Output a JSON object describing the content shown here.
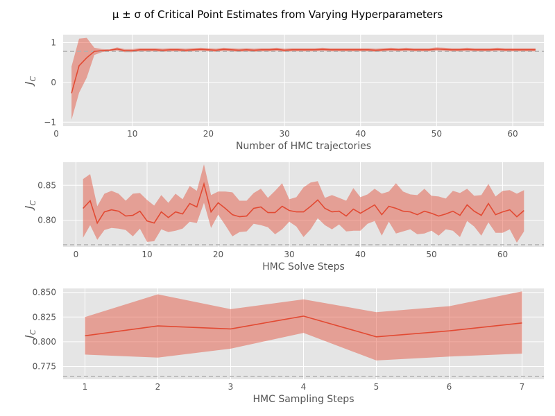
{
  "figure": {
    "title": "μ ± σ of Critical Point Estimates from Varying Hyperparameters"
  },
  "colors": {
    "panel_bg": "#e5e5e5",
    "grid": "#ffffff",
    "line": "#e24a33",
    "band": "#e24a33",
    "reference": "#b0b0b0",
    "tick_text": "#555555"
  },
  "chart_data": [
    {
      "type": "line",
      "xlabel": "Number of HMC trajectories",
      "ylabel": "J",
      "ylabel_sub": "C",
      "xlim": [
        0.9,
        64.1
      ],
      "ylim": [
        -1.1,
        1.2
      ],
      "xticks": [
        0,
        10,
        20,
        30,
        40,
        50,
        60
      ],
      "yticks": [
        -1,
        0,
        1
      ],
      "ytick_labels": [
        "−1",
        "0",
        "1"
      ],
      "reference_y": 0.78,
      "grid": true,
      "x": [
        2,
        3,
        4,
        5,
        6,
        7,
        8,
        9,
        10,
        11,
        12,
        13,
        14,
        15,
        16,
        17,
        18,
        19,
        20,
        21,
        22,
        23,
        24,
        25,
        26,
        27,
        28,
        29,
        30,
        31,
        32,
        33,
        34,
        35,
        36,
        37,
        38,
        39,
        40,
        41,
        42,
        43,
        44,
        45,
        46,
        47,
        48,
        49,
        50,
        51,
        52,
        53,
        54,
        55,
        56,
        57,
        58,
        59,
        60,
        61,
        62,
        63
      ],
      "mean": [
        -0.27,
        0.42,
        0.62,
        0.78,
        0.8,
        0.81,
        0.84,
        0.8,
        0.8,
        0.82,
        0.82,
        0.82,
        0.81,
        0.82,
        0.82,
        0.81,
        0.82,
        0.83,
        0.82,
        0.81,
        0.83,
        0.82,
        0.81,
        0.82,
        0.81,
        0.82,
        0.82,
        0.83,
        0.81,
        0.82,
        0.82,
        0.82,
        0.82,
        0.83,
        0.82,
        0.82,
        0.82,
        0.82,
        0.82,
        0.82,
        0.81,
        0.82,
        0.83,
        0.82,
        0.83,
        0.82,
        0.82,
        0.82,
        0.84,
        0.83,
        0.82,
        0.82,
        0.83,
        0.82,
        0.82,
        0.82,
        0.83,
        0.82,
        0.82,
        0.82,
        0.82,
        0.82
      ],
      "upper": [
        0.4,
        1.1,
        1.12,
        0.87,
        0.84,
        0.83,
        0.88,
        0.84,
        0.84,
        0.86,
        0.86,
        0.86,
        0.85,
        0.86,
        0.86,
        0.85,
        0.86,
        0.87,
        0.86,
        0.85,
        0.87,
        0.86,
        0.85,
        0.86,
        0.85,
        0.86,
        0.86,
        0.87,
        0.85,
        0.86,
        0.86,
        0.86,
        0.86,
        0.87,
        0.86,
        0.86,
        0.86,
        0.86,
        0.86,
        0.86,
        0.85,
        0.86,
        0.87,
        0.86,
        0.87,
        0.86,
        0.86,
        0.86,
        0.88,
        0.87,
        0.86,
        0.86,
        0.87,
        0.86,
        0.86,
        0.86,
        0.87,
        0.86,
        0.86,
        0.86,
        0.86,
        0.86
      ],
      "lower": [
        -0.94,
        -0.26,
        0.12,
        0.69,
        0.76,
        0.79,
        0.8,
        0.76,
        0.76,
        0.78,
        0.78,
        0.78,
        0.77,
        0.78,
        0.78,
        0.77,
        0.78,
        0.79,
        0.78,
        0.77,
        0.79,
        0.78,
        0.77,
        0.78,
        0.77,
        0.78,
        0.78,
        0.79,
        0.77,
        0.78,
        0.78,
        0.78,
        0.78,
        0.79,
        0.78,
        0.78,
        0.78,
        0.78,
        0.78,
        0.78,
        0.77,
        0.78,
        0.79,
        0.78,
        0.79,
        0.78,
        0.78,
        0.78,
        0.8,
        0.79,
        0.78,
        0.78,
        0.79,
        0.78,
        0.78,
        0.78,
        0.79,
        0.78,
        0.78,
        0.78,
        0.78,
        0.78
      ]
    },
    {
      "type": "line",
      "xlabel": "HMC Solve Steps",
      "ylabel": "J",
      "ylabel_sub": "C",
      "xlim": [
        -1.8,
        65.8
      ],
      "ylim": [
        0.762,
        0.883
      ],
      "xticks": [
        0,
        10,
        20,
        30,
        40,
        50,
        60
      ],
      "yticks": [
        0.8,
        0.85
      ],
      "ytick_labels": [
        "0.80",
        "0.85"
      ],
      "reference_y": 0.765,
      "grid": true,
      "x": [
        1,
        2,
        3,
        4,
        5,
        6,
        7,
        8,
        9,
        10,
        11,
        12,
        13,
        14,
        15,
        16,
        17,
        18,
        19,
        20,
        21,
        22,
        23,
        24,
        25,
        26,
        27,
        28,
        29,
        30,
        31,
        32,
        33,
        34,
        35,
        36,
        37,
        38,
        39,
        40,
        41,
        42,
        43,
        44,
        45,
        46,
        47,
        48,
        49,
        50,
        51,
        52,
        53,
        54,
        55,
        56,
        57,
        58,
        59,
        60,
        61,
        62,
        63
      ],
      "mean": [
        0.817,
        0.828,
        0.796,
        0.812,
        0.815,
        0.813,
        0.806,
        0.807,
        0.813,
        0.799,
        0.796,
        0.812,
        0.804,
        0.812,
        0.809,
        0.824,
        0.819,
        0.852,
        0.812,
        0.825,
        0.817,
        0.808,
        0.805,
        0.806,
        0.817,
        0.819,
        0.811,
        0.811,
        0.82,
        0.814,
        0.812,
        0.812,
        0.82,
        0.829,
        0.817,
        0.812,
        0.813,
        0.806,
        0.816,
        0.81,
        0.816,
        0.822,
        0.808,
        0.82,
        0.817,
        0.813,
        0.812,
        0.808,
        0.813,
        0.81,
        0.806,
        0.809,
        0.813,
        0.807,
        0.822,
        0.813,
        0.807,
        0.824,
        0.808,
        0.812,
        0.815,
        0.805,
        0.814
      ],
      "upper": [
        0.859,
        0.866,
        0.82,
        0.838,
        0.842,
        0.838,
        0.828,
        0.838,
        0.839,
        0.829,
        0.821,
        0.836,
        0.825,
        0.838,
        0.83,
        0.849,
        0.842,
        0.88,
        0.836,
        0.841,
        0.841,
        0.84,
        0.828,
        0.828,
        0.839,
        0.845,
        0.832,
        0.842,
        0.853,
        0.83,
        0.833,
        0.847,
        0.854,
        0.856,
        0.832,
        0.836,
        0.832,
        0.828,
        0.846,
        0.833,
        0.837,
        0.845,
        0.838,
        0.841,
        0.853,
        0.841,
        0.837,
        0.836,
        0.845,
        0.835,
        0.834,
        0.831,
        0.842,
        0.839,
        0.845,
        0.835,
        0.836,
        0.852,
        0.834,
        0.842,
        0.843,
        0.838,
        0.843
      ],
      "lower": [
        0.775,
        0.793,
        0.772,
        0.786,
        0.789,
        0.788,
        0.786,
        0.777,
        0.788,
        0.769,
        0.77,
        0.787,
        0.783,
        0.785,
        0.788,
        0.798,
        0.796,
        0.825,
        0.789,
        0.808,
        0.793,
        0.777,
        0.783,
        0.784,
        0.795,
        0.793,
        0.79,
        0.78,
        0.787,
        0.798,
        0.791,
        0.776,
        0.787,
        0.803,
        0.793,
        0.787,
        0.794,
        0.784,
        0.785,
        0.785,
        0.795,
        0.799,
        0.778,
        0.798,
        0.781,
        0.784,
        0.787,
        0.78,
        0.781,
        0.785,
        0.778,
        0.787,
        0.785,
        0.776,
        0.799,
        0.791,
        0.778,
        0.797,
        0.782,
        0.782,
        0.787,
        0.768,
        0.784
      ]
    },
    {
      "type": "line",
      "xlabel": "HMC Sampling Steps",
      "ylabel": "J",
      "ylabel_sub": "C",
      "xlim": [
        0.7,
        7.3
      ],
      "ylim": [
        0.762,
        0.854
      ],
      "xticks": [
        1,
        2,
        3,
        4,
        5,
        6,
        7
      ],
      "yticks": [
        0.775,
        0.8,
        0.825,
        0.85
      ],
      "ytick_labels": [
        "0.775",
        "0.800",
        "0.825",
        "0.850"
      ],
      "reference_y": 0.765,
      "grid": true,
      "x": [
        1,
        2,
        3,
        4,
        5,
        6,
        7
      ],
      "mean": [
        0.806,
        0.816,
        0.813,
        0.826,
        0.805,
        0.811,
        0.819
      ],
      "upper": [
        0.825,
        0.848,
        0.833,
        0.843,
        0.83,
        0.836,
        0.851
      ],
      "lower": [
        0.787,
        0.784,
        0.793,
        0.809,
        0.781,
        0.785,
        0.788
      ]
    }
  ]
}
